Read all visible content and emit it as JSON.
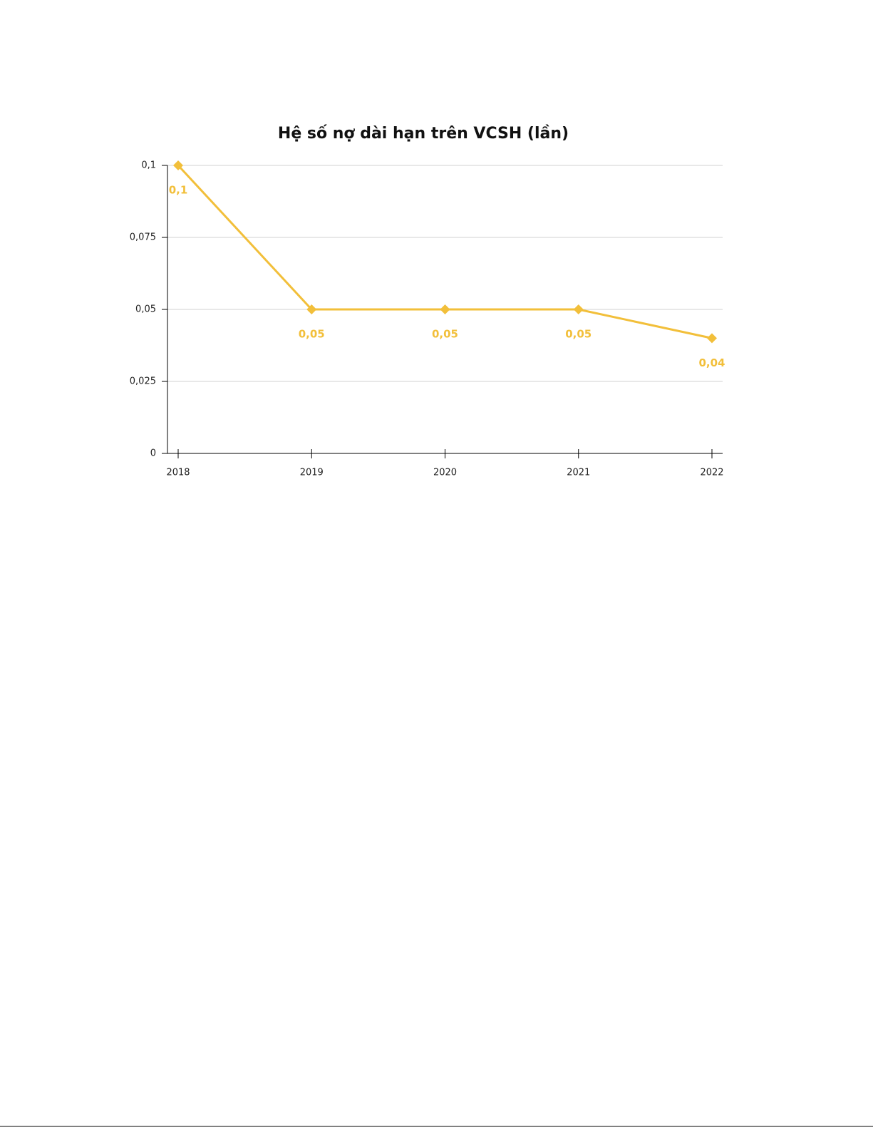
{
  "chart_data": {
    "type": "line",
    "title": "Hệ số nợ dài hạn trên VCSH (lần)",
    "categories": [
      "2018",
      "2019",
      "2020",
      "2021",
      "2022"
    ],
    "values": [
      0.1,
      0.05,
      0.05,
      0.05,
      0.04
    ],
    "value_labels": [
      "0,1",
      "0,05",
      "0,05",
      "0,05",
      "0,04"
    ],
    "color": "#f2bf3a",
    "ylim": [
      0,
      0.1
    ],
    "yticks": [
      0,
      {
        "value": 0.025,
        "label": "0,025"
      },
      {
        "value": 0.05,
        "label": "0,05"
      },
      {
        "value": 0.075,
        "label": "0,075"
      },
      {
        "value": 0.1,
        "label": "0,1"
      }
    ],
    "grid": true
  }
}
